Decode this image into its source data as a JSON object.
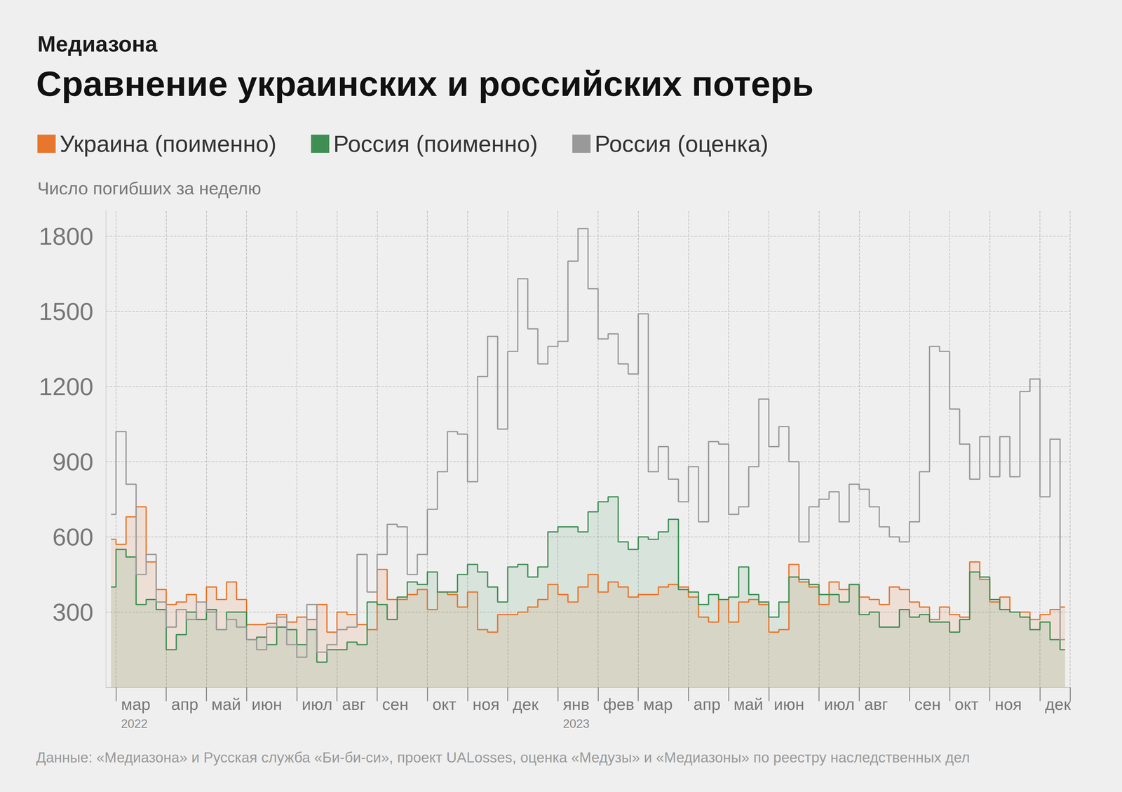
{
  "chart_data": {
    "type": "line",
    "supertitle": "Медиазона",
    "title": "Сравнение украинских и российских потерь",
    "y_label": "Число погибших за неделю",
    "source": "Данные: «Медиазона» и Русская служба «Би-би-си», проект UALosses, оценка «Медузы» и «Медиазоны» по реестру наследственных дел",
    "line_style": "step",
    "grid": true,
    "legend": "top-left",
    "ylim": [
      0,
      1900
    ],
    "yticks": [
      300,
      600,
      900,
      1200,
      1500,
      1800
    ],
    "categories": [
      null,
      "мар\n2022",
      null,
      null,
      null,
      null,
      "апр",
      null,
      null,
      null,
      "май",
      null,
      null,
      null,
      "июн",
      null,
      null,
      null,
      null,
      "июл",
      null,
      null,
      null,
      "авг",
      null,
      null,
      null,
      "сен",
      null,
      null,
      null,
      null,
      "окт",
      null,
      null,
      null,
      "ноя",
      null,
      null,
      null,
      "дек",
      null,
      null,
      null,
      null,
      "янв\n2023",
      null,
      null,
      null,
      "фев",
      null,
      null,
      null,
      "мар",
      null,
      null,
      null,
      null,
      "апр",
      null,
      null,
      null,
      "май",
      null,
      null,
      null,
      "июн",
      null,
      null,
      null,
      null,
      "июл",
      null,
      null,
      null,
      "авг",
      null,
      null,
      null,
      null,
      "сен",
      null,
      null,
      null,
      "окт",
      null,
      null,
      null,
      "ноя",
      null,
      null,
      null,
      null,
      "дек",
      null,
      null
    ],
    "series": [
      {
        "name": "Украина (поименно)",
        "color": "#e8762d",
        "type": "area",
        "values": [
          590,
          570,
          680,
          720,
          500,
          390,
          330,
          340,
          370,
          340,
          400,
          350,
          420,
          350,
          250,
          250,
          255,
          290,
          260,
          280,
          270,
          330,
          220,
          300,
          290,
          250,
          230,
          470,
          350,
          350,
          370,
          390,
          310,
          380,
          370,
          320,
          380,
          230,
          220,
          290,
          290,
          300,
          320,
          350,
          410,
          370,
          340,
          400,
          450,
          380,
          420,
          400,
          360,
          370,
          370,
          400,
          410,
          400,
          360,
          280,
          260,
          350,
          260,
          340,
          350,
          330,
          220,
          230,
          490,
          420,
          400,
          330,
          420,
          390,
          410,
          360,
          350,
          330,
          400,
          390,
          340,
          320,
          270,
          320,
          290,
          280,
          500,
          430,
          340,
          360,
          300,
          300,
          270,
          290,
          310,
          320
        ]
      },
      {
        "name": "Россия (поименно)",
        "color": "#3f8f55",
        "type": "area",
        "values": [
          400,
          550,
          520,
          330,
          350,
          310,
          150,
          210,
          300,
          270,
          310,
          230,
          300,
          300,
          190,
          200,
          170,
          240,
          230,
          170,
          230,
          100,
          150,
          150,
          180,
          170,
          340,
          330,
          270,
          360,
          420,
          410,
          460,
          380,
          380,
          450,
          490,
          460,
          400,
          340,
          480,
          490,
          440,
          480,
          620,
          640,
          640,
          620,
          700,
          740,
          760,
          580,
          550,
          600,
          590,
          620,
          670,
          390,
          380,
          330,
          370,
          350,
          360,
          480,
          370,
          340,
          280,
          340,
          440,
          430,
          410,
          370,
          370,
          340,
          410,
          290,
          300,
          240,
          240,
          310,
          280,
          290,
          260,
          260,
          220,
          270,
          460,
          440,
          350,
          310,
          300,
          280,
          230,
          260,
          190,
          150
        ]
      },
      {
        "name": "Россия (оценка)",
        "color": "#999999",
        "type": "line",
        "values": [
          690,
          1020,
          810,
          450,
          530,
          340,
          240,
          310,
          270,
          340,
          300,
          230,
          270,
          240,
          190,
          150,
          240,
          280,
          170,
          120,
          330,
          140,
          170,
          230,
          240,
          530,
          380,
          530,
          650,
          640,
          450,
          530,
          710,
          860,
          1020,
          1010,
          820,
          1240,
          1400,
          1030,
          1340,
          1630,
          1430,
          1290,
          1360,
          1380,
          1700,
          1830,
          1590,
          1390,
          1410,
          1290,
          1250,
          1490,
          860,
          960,
          830,
          740,
          880,
          660,
          980,
          970,
          690,
          720,
          880,
          1150,
          960,
          1040,
          900,
          580,
          720,
          750,
          780,
          660,
          810,
          790,
          720,
          640,
          600,
          580,
          660,
          860,
          1360,
          1340,
          1110,
          970,
          830,
          1000,
          840,
          1000,
          840,
          1180,
          1230,
          760,
          990,
          190
        ]
      }
    ]
  }
}
